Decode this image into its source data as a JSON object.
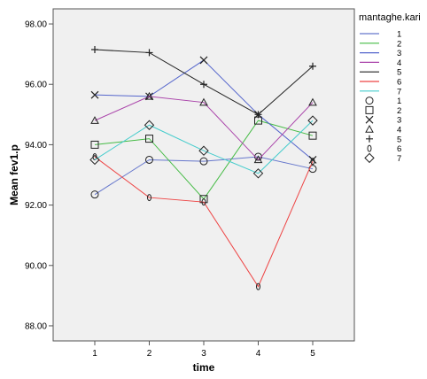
{
  "chart_data": {
    "type": "line",
    "xlabel": "time",
    "ylabel": "Mean fev1.p",
    "x": [
      1,
      2,
      3,
      4,
      5
    ],
    "x_ticks": [
      "1",
      "2",
      "3",
      "4",
      "5"
    ],
    "ylim": [
      87.5,
      98.5
    ],
    "y_ticks": [
      "88.00",
      "90.00",
      "92.00",
      "94.00",
      "96.00",
      "98.00"
    ],
    "grid": false,
    "legend_position": "right",
    "legend_title": "mantaghe.kari",
    "background": "#f0f0f0",
    "series": [
      {
        "name": "1",
        "values": [
          92.35,
          93.5,
          93.45,
          93.6,
          93.2
        ],
        "color": "#6677cc",
        "marker": "circle"
      },
      {
        "name": "2",
        "values": [
          94.0,
          94.2,
          92.2,
          94.8,
          94.3
        ],
        "color": "#44bb44",
        "marker": "square"
      },
      {
        "name": "3",
        "values": [
          95.65,
          95.6,
          96.8,
          95.0,
          93.5
        ],
        "color": "#5566cc",
        "marker": "x"
      },
      {
        "name": "4",
        "values": [
          94.8,
          95.6,
          95.4,
          93.5,
          95.4
        ],
        "color": "#aa44aa",
        "marker": "triangle"
      },
      {
        "name": "5",
        "values": [
          97.15,
          97.05,
          96.0,
          95.0,
          96.6
        ],
        "color": "#222222",
        "marker": "plus"
      },
      {
        "name": "6",
        "values": [
          93.6,
          92.25,
          92.1,
          89.3,
          93.45
        ],
        "color": "#ee4444",
        "marker": "zero"
      },
      {
        "name": "7",
        "values": [
          93.5,
          94.65,
          93.8,
          93.05,
          94.8
        ],
        "color": "#44cccc",
        "marker": "diamond"
      }
    ]
  }
}
